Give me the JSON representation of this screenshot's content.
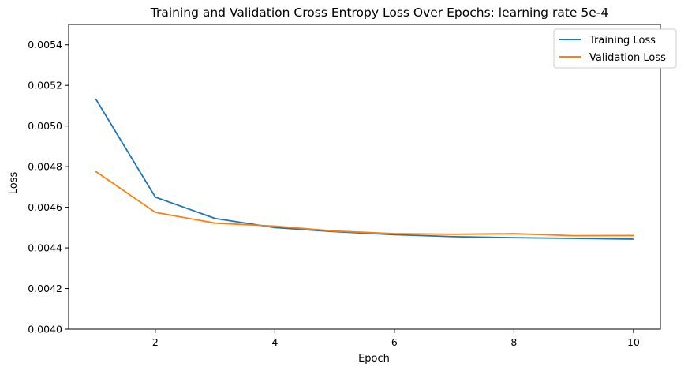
{
  "chart_data": {
    "type": "line",
    "title": "Training and Validation Cross Entropy Loss Over Epochs: learning rate 5e-4",
    "xlabel": "Epoch",
    "ylabel": "Loss",
    "x": [
      1,
      2,
      3,
      4,
      5,
      6,
      7,
      8,
      9,
      10
    ],
    "xlim": [
      0.55,
      10.45
    ],
    "ylim": [
      0.004,
      0.0055
    ],
    "xticks": [
      2,
      4,
      6,
      8,
      10
    ],
    "xtick_labels": [
      "2",
      "4",
      "6",
      "8",
      "10"
    ],
    "yticks": [
      0.004,
      0.0042,
      0.0044,
      0.0046,
      0.0048,
      0.005,
      0.0052,
      0.0054
    ],
    "ytick_labels": [
      "0.0040",
      "0.0042",
      "0.0044",
      "0.0046",
      "0.0048",
      "0.0050",
      "0.0052",
      "0.0054"
    ],
    "grid": false,
    "legend_position": "top-right",
    "series": [
      {
        "name": "Training Loss",
        "color": "#1f77b4",
        "values": [
          0.005135,
          0.00465,
          0.004545,
          0.0045,
          0.00448,
          0.004465,
          0.004455,
          0.00445,
          0.004447,
          0.004443
        ]
      },
      {
        "name": "Validation Loss",
        "color": "#ff7f0e",
        "values": [
          0.004777,
          0.004575,
          0.004522,
          0.004507,
          0.004483,
          0.00447,
          0.004467,
          0.00447,
          0.00446,
          0.004461
        ]
      }
    ]
  }
}
